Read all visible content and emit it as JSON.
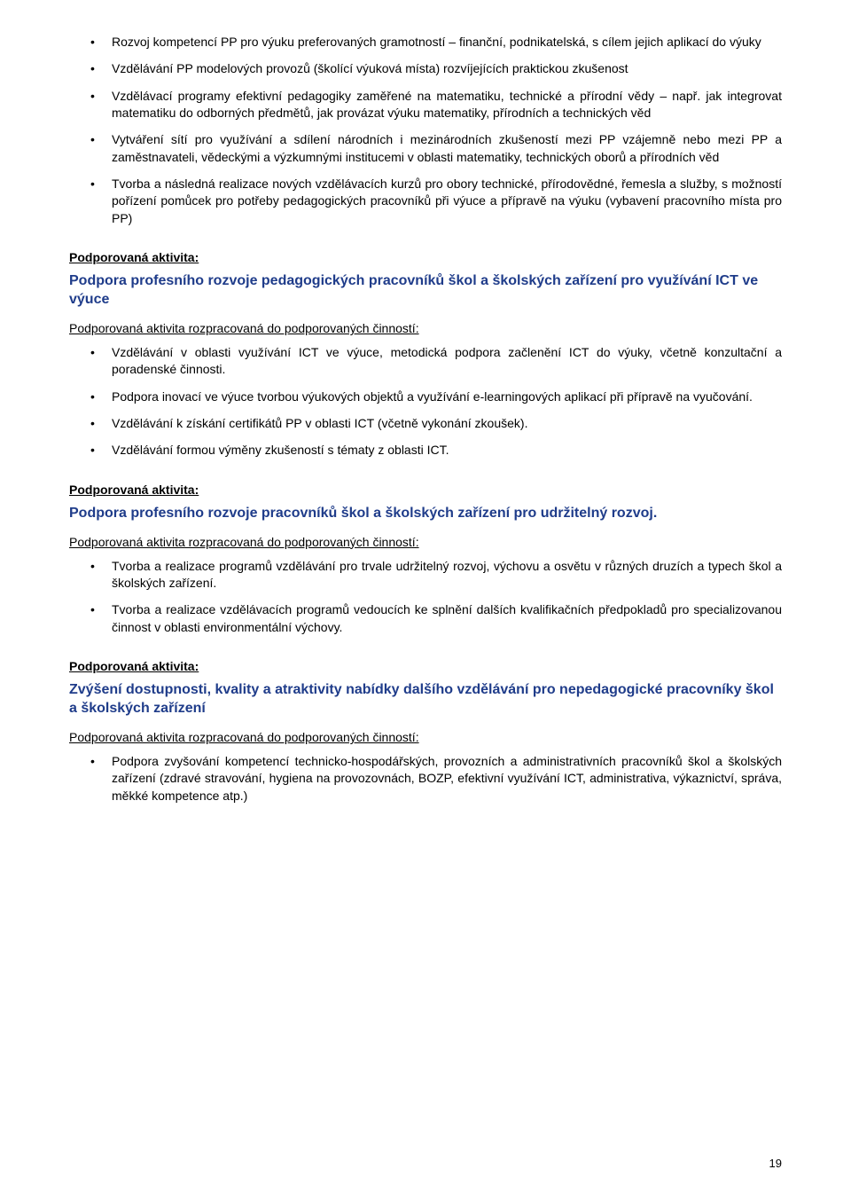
{
  "intro_bullets": [
    "Rozvoj kompetencí PP pro výuku preferovaných gramotností – finanční, podnikatelská, s cílem jejich aplikací do výuky",
    "Vzdělávání PP modelových provozů (školící výuková místa) rozvíjejících praktickou zkušenost",
    "Vzdělávací programy efektivní pedagogiky zaměřené na matematiku, technické a přírodní vědy – např. jak integrovat matematiku do odborných předmětů, jak provázat výuku matematiky, přírodních a technických věd",
    "Vytváření sítí pro využívání a sdílení národních i mezinárodních zkušeností mezi PP vzájemně nebo mezi PP a zaměstnavateli, vědeckými a výzkumnými institucemi v oblasti matematiky, technických oborů a přírodních věd",
    "Tvorba a následná realizace nových vzdělávacích kurzů pro obory technické, přírodovědné, řemesla a služby, s možností pořízení pomůcek pro potřeby pedagogických pracovníků při výuce a přípravě na výuku (vybavení pracovního místa pro PP)"
  ],
  "labels": {
    "activity": "Podporovaná aktivita:",
    "breakdown": "Podporovaná aktivita rozpracovaná do podporovaných činností:"
  },
  "sections": [
    {
      "title": "Podpora profesního rozvoje pedagogických pracovníků škol a školských zařízení pro využívání ICT ve výuce",
      "bullets": [
        "Vzdělávání v oblasti využívání ICT ve výuce, metodická podpora začlenění ICT do výuky, včetně konzultační a poradenské činnosti.",
        "Podpora inovací ve výuce tvorbou výukových objektů a využívání e-learningových aplikací při přípravě na vyučování.",
        "Vzdělávání k získání certifikátů PP v oblasti ICT (včetně vykonání zkoušek).",
        "Vzdělávání formou výměny zkušeností s tématy z oblasti ICT."
      ]
    },
    {
      "title": "Podpora profesního rozvoje pracovníků škol a školských zařízení pro udržitelný rozvoj.",
      "bullets": [
        "Tvorba a realizace programů vzdělávání pro trvale udržitelný rozvoj, výchovu a osvětu v různých druzích a typech škol a školských zařízení.",
        "Tvorba a realizace vzdělávacích programů vedoucích ke splnění dalších kvalifikačních předpokladů pro specializovanou činnost v oblasti environmentální výchovy."
      ]
    },
    {
      "title": "Zvýšení dostupnosti, kvality a atraktivity nabídky dalšího vzdělávání pro nepedagogické pracovníky škol a školských zařízení",
      "bullets": [
        "Podpora zvyšování kompetencí technicko-hospodářských, provozních a administrativních pracovníků škol a školských zařízení (zdravé stravování, hygiena na provozovnách, BOZP, efektivní využívání ICT, administrativa, výkaznictví, správa, měkké kompetence atp.)"
      ]
    }
  ],
  "page_number": "19"
}
